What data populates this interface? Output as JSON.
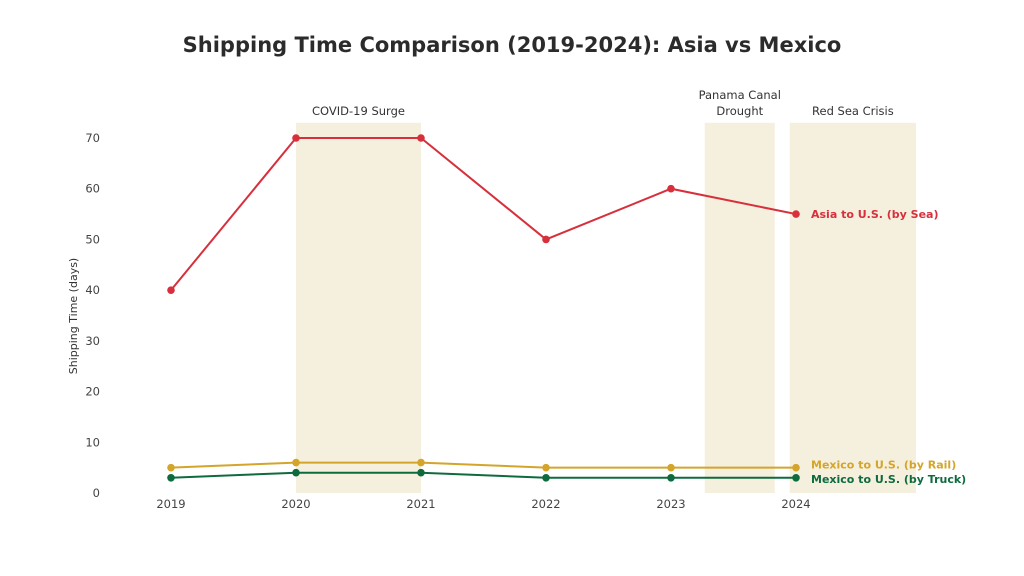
{
  "chart_data": {
    "type": "line",
    "title": "Shipping Time Comparison (2019-2024): Asia vs Mexico",
    "xlabel": "",
    "ylabel": "Shipping Time (days)",
    "x": [
      2019,
      2020,
      2021,
      2022,
      2023,
      2024
    ],
    "x_tick_labels": [
      "2019",
      "2020",
      "2021",
      "2022",
      "2023",
      "2024"
    ],
    "ylim": [
      0,
      73
    ],
    "y_ticks": [
      0,
      10,
      20,
      30,
      40,
      50,
      60,
      70
    ],
    "grid": false,
    "series": [
      {
        "name": "Asia to U.S. (by Sea)",
        "color": "#d7303c",
        "values": [
          40,
          70,
          70,
          50,
          60,
          55
        ]
      },
      {
        "name": "Mexico to U.S. (by Rail)",
        "color": "#d4a52a",
        "values": [
          5,
          6,
          6,
          5,
          5,
          5
        ]
      },
      {
        "name": "Mexico to U.S. (by Truck)",
        "color": "#0e6b3e",
        "values": [
          3,
          4,
          4,
          3,
          3,
          3
        ]
      }
    ],
    "annotations": [
      {
        "label": "COVID-19 Surge",
        "x_start": 2020,
        "x_end": 2021
      },
      {
        "label": "Panama Canal Drought",
        "x_start": 2023.27,
        "x_end": 2023.83
      },
      {
        "label": "Red Sea Crisis",
        "x_start": 2023.95,
        "x_end": 2024.96
      }
    ],
    "shade_color": "#f5efdd"
  }
}
